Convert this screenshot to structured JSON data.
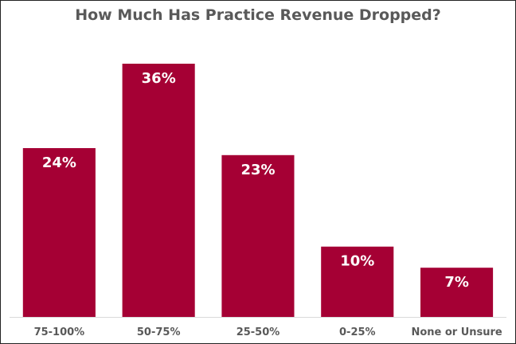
{
  "chart_data": {
    "type": "bar",
    "title": "How Much Has Practice Revenue Dropped?",
    "categories": [
      "75-100%",
      "50-75%",
      "25-50%",
      "0-25%",
      "None or Unsure"
    ],
    "values": [
      24,
      36,
      23,
      10,
      7
    ],
    "data_labels": [
      "24%",
      "36%",
      "23%",
      "10%",
      "7%"
    ],
    "xlabel": "",
    "ylabel": "",
    "ylim": [
      0,
      36
    ],
    "grid": false,
    "legend": "none",
    "bar_color": "#A50034",
    "axis_color": "#D9D9D9"
  }
}
